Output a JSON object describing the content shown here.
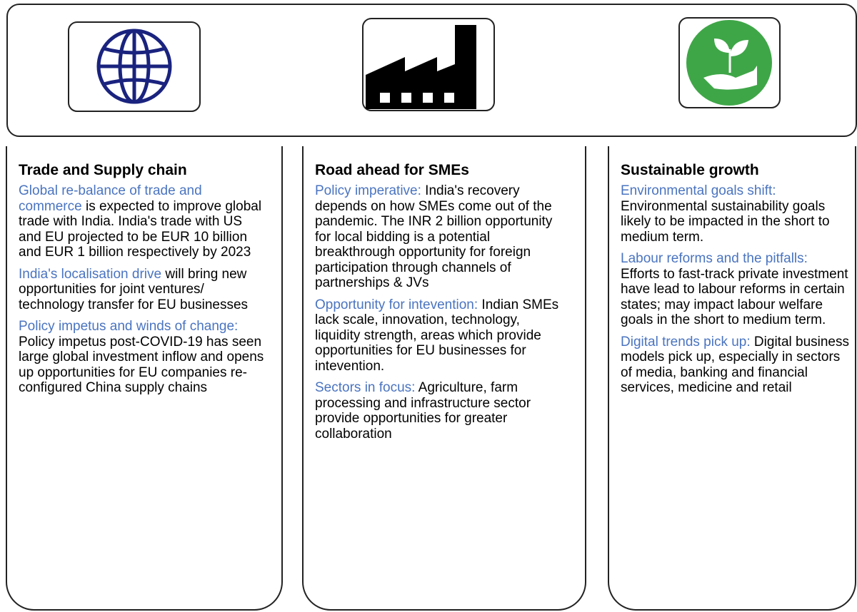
{
  "columns": [
    {
      "title": "Trade and Supply chain",
      "items": [
        {
          "lead": "Global re-balance of trade and commerce",
          "text": " is expected to improve global trade with India. India's trade with US and EU projected to be EUR 10 billion and EUR 1 billion respectively by 2023"
        },
        {
          "lead": "India's localisation drive ",
          "text": " will bring new opportunities for  joint ventures/ technology transfer for EU businesses"
        },
        {
          "lead": "Policy impetus and winds of change:",
          "text": " Policy impetus post-COVID-19 has seen large global investment inflow and opens up opportunities for EU companies re-configured China supply chains"
        }
      ]
    },
    {
      "title": "Road ahead for SMEs",
      "items": [
        {
          "lead": "Policy imperative:",
          "text": " India's recovery depends on how SMEs come out of the pandemic. The INR 2 billion opportunity for local bidding is a potential breakthrough opportunity for foreign participation through channels of partnerships & JVs"
        },
        {
          "lead": "Opportunity for intevention:",
          "text": " Indian SMEs lack scale, innovation, technology, liquidity strength, areas which provide opportunities for EU businesses for intevention."
        },
        {
          "lead": "Sectors in focus:",
          "text": " Agriculture, farm processing and infrastructure sector provide opportunities for greater collaboration"
        }
      ]
    },
    {
      "title": "Sustainable growth",
      "items": [
        {
          "lead": "Environmental goals shift:",
          "text": " Environmental sustainability goals likely to be impacted in the short to medium term."
        },
        {
          "lead": "Labour reforms and the pitfalls:",
          "text": " Efforts to fast-track private investment have lead to labour reforms in certain states; may impact labour welfare goals in the short to medium term."
        },
        {
          "lead": "Digital trends pick up:",
          "text": " Digital business models pick up, especially in sectors of media, banking and financial services, medicine and retail"
        }
      ]
    }
  ]
}
